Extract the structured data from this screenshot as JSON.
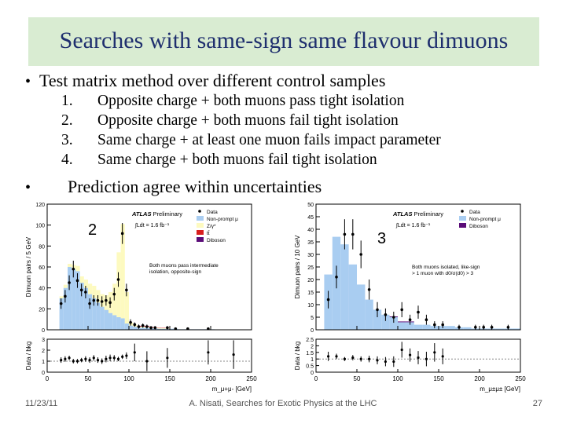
{
  "slide": {
    "title": "Searches with same-sign same flavour dimuons",
    "bullet1": "Test matrix method over different control samples",
    "items": [
      {
        "num": "1.",
        "text": "Opposite charge + both muons pass tight isolation"
      },
      {
        "num": "2.",
        "text": "Opposite charge + both muons fail tight isolation"
      },
      {
        "num": "3.",
        "text": "Same charge + at least one muon fails impact parameter"
      },
      {
        "num": "4.",
        "text": "Same charge + both muons fail tight isolation"
      }
    ],
    "bullet2": "Prediction agree within uncertainties",
    "footer_date": "11/23/11",
    "footer_center": "A. Nisati, Searches for Exotic Physics at the LHC",
    "footer_page": "27"
  },
  "colors": {
    "title_bg": "#d9ecd2",
    "title_text": "#1f2f6e",
    "nonprompt": "#a9cdf1",
    "zgamma": "#fdfac0",
    "ttbar": "#d81e1e",
    "diboson": "#5a0c78"
  },
  "chart_data": [
    {
      "type": "bar",
      "panel_label": "2",
      "title": "ATLAS Preliminary",
      "lumi": "∫Ldt = 1.6 fb⁻¹",
      "ylabel": "Dimuon pairs / 5 GeV",
      "ratio_ylabel": "Data / bkg",
      "xlabel": "m_μ+μ- [GeV]",
      "xlim": [
        0,
        250
      ],
      "ylim": [
        0,
        120
      ],
      "ratio_ylim": [
        0,
        3
      ],
      "x_ticks": [
        "0",
        "50",
        "100",
        "150",
        "200",
        "250"
      ],
      "y_ticks": [
        "0",
        "20",
        "40",
        "60",
        "80",
        "100",
        "120"
      ],
      "ratio_ticks": [
        "0",
        "1",
        "2",
        "3"
      ],
      "legend": [
        "Data",
        "Non-prompt μ",
        "Z/γ*",
        "tt̄",
        "Diboson"
      ],
      "annotation": "Both muons pass intermediate isolation, opposite-sign",
      "bin_width": 5,
      "bin_starts": [
        15,
        20,
        25,
        30,
        35,
        40,
        45,
        50,
        55,
        60,
        65,
        70,
        75,
        80,
        85,
        90,
        95,
        100,
        105,
        110,
        115,
        120,
        125,
        130,
        135,
        140,
        145,
        150,
        155,
        160,
        165,
        170,
        175,
        180,
        185,
        190,
        195,
        200
      ],
      "series": [
        {
          "name": "Non-prompt μ",
          "values": [
            30,
            40,
            60,
            58,
            56,
            45,
            40,
            34,
            30,
            26,
            22,
            19,
            16,
            14,
            12,
            11,
            6,
            4,
            3,
            2,
            2,
            2,
            1.5,
            1.5,
            1,
            1,
            1,
            1,
            1,
            0.5,
            0.5,
            0.5,
            0.5,
            0.5,
            0.5,
            0.5,
            0.5,
            0.5
          ]
        },
        {
          "name": "Z/γ*",
          "values": [
            2,
            3,
            3,
            4,
            5,
            6,
            8,
            10,
            12,
            12,
            12,
            14,
            20,
            30,
            62,
            90,
            30,
            3,
            2,
            1,
            1,
            1,
            0.5,
            0.5,
            0.5,
            0.5,
            0.5,
            0,
            0,
            0,
            0,
            0,
            0,
            0,
            0,
            0,
            0,
            0
          ]
        },
        {
          "name": "tt̄",
          "values": [
            0,
            0,
            0,
            0,
            0,
            0,
            0,
            0,
            0,
            0,
            0,
            0,
            0,
            0,
            0,
            0,
            0,
            0,
            0,
            0.5,
            0.5,
            0.5,
            0.5,
            0.3,
            0.3,
            0.3,
            0.3,
            0,
            0,
            0,
            0,
            0,
            0,
            0,
            0,
            0,
            0,
            0
          ]
        },
        {
          "name": "Diboson",
          "values": [
            0,
            0,
            0,
            0,
            0,
            0,
            0,
            0,
            0,
            0,
            0,
            0,
            0,
            0,
            0,
            0,
            0,
            0,
            0,
            0.3,
            0.3,
            0.3,
            0.2,
            0,
            0,
            0,
            0,
            0,
            0,
            0,
            0,
            0,
            0,
            0,
            0,
            0,
            0,
            0
          ]
        }
      ],
      "data": {
        "x": [
          17,
          22,
          27,
          32,
          37,
          42,
          47,
          52,
          57,
          62,
          67,
          72,
          77,
          82,
          87,
          92,
          97,
          102,
          107,
          112,
          117,
          122,
          127,
          132,
          147,
          157,
          172,
          197
        ],
        "y": [
          25,
          32,
          45,
          58,
          47,
          38,
          36,
          25,
          28,
          28,
          27,
          28,
          26,
          34,
          48,
          92,
          38,
          7,
          5,
          3,
          4,
          3,
          2,
          2,
          2,
          1,
          1,
          1
        ],
        "err": [
          5,
          6,
          7,
          8,
          7,
          6,
          6,
          5,
          5,
          5,
          5,
          5,
          5,
          6,
          7,
          10,
          6,
          3,
          2,
          2,
          2,
          2,
          1.5,
          1.5,
          1.5,
          1,
          1,
          1
        ]
      },
      "ratio": {
        "x": [
          17,
          22,
          27,
          32,
          37,
          42,
          47,
          52,
          57,
          62,
          67,
          72,
          77,
          82,
          87,
          92,
          97,
          107,
          122,
          147,
          197,
          228
        ],
        "y": [
          1.1,
          1.2,
          1.3,
          1.0,
          1.0,
          1.1,
          1.2,
          1.1,
          1.3,
          1.1,
          1.0,
          1.2,
          1.3,
          1.3,
          1.2,
          1.4,
          1.5,
          1.8,
          1.0,
          1.3,
          1.8,
          1.6
        ],
        "err": [
          0.25,
          0.25,
          0.2,
          0.2,
          0.2,
          0.2,
          0.25,
          0.25,
          0.25,
          0.25,
          0.25,
          0.3,
          0.3,
          0.25,
          0.2,
          0.2,
          0.3,
          0.8,
          0.9,
          0.9,
          1.1,
          1.3
        ]
      }
    },
    {
      "type": "bar",
      "panel_label": "3",
      "title": "ATLAS Preliminary",
      "lumi": "∫Ldt = 1.6 fb⁻¹",
      "ylabel": "Dimuon pairs / 10 GeV",
      "ratio_ylabel": "Data / bkg",
      "xlabel": "m_μ±μ± [GeV]",
      "xlim": [
        0,
        250
      ],
      "ylim": [
        0,
        50
      ],
      "ratio_ylim": [
        0,
        2.5
      ],
      "x_ticks": [
        "0",
        "50",
        "100",
        "150",
        "200",
        "250"
      ],
      "y_ticks": [
        "0",
        "5",
        "10",
        "15",
        "20",
        "25",
        "30",
        "35",
        "40",
        "45",
        "50"
      ],
      "ratio_ticks": [
        "0",
        "0.5",
        "1",
        "1.5",
        "2",
        "2.5"
      ],
      "legend": [
        "Data",
        "Non-prompt μ",
        "Diboson"
      ],
      "annotation": "Both muons isolated, like-sign > 1 muon with d0/σ(d0) > 3",
      "bin_width": 10,
      "bin_starts": [
        10,
        20,
        30,
        40,
        50,
        60,
        70,
        80,
        90,
        100,
        110,
        120,
        130,
        140,
        150,
        160,
        170,
        180,
        190,
        200,
        210,
        220,
        230,
        240
      ],
      "series": [
        {
          "name": "Non-prompt μ",
          "values": [
            22,
            37,
            34,
            26,
            18,
            12,
            8,
            6,
            5,
            3,
            3,
            2,
            2,
            1.5,
            1.5,
            1.5,
            1,
            1,
            0.5,
            0.5,
            0.5,
            0.5,
            0.5,
            0.5
          ]
        },
        {
          "name": "Diboson",
          "values": [
            0,
            0,
            0,
            0,
            0,
            0,
            0,
            0,
            0.3,
            0.3,
            0.3,
            0,
            0,
            0,
            0,
            0,
            0,
            0,
            0,
            0,
            0,
            0,
            0,
            0
          ]
        }
      ],
      "data": {
        "x": [
          15,
          25,
          35,
          45,
          55,
          65,
          75,
          85,
          95,
          105,
          115,
          125,
          135,
          145,
          155,
          175,
          195,
          205,
          215,
          235
        ],
        "y": [
          12,
          21,
          38,
          38,
          30,
          16,
          8,
          6,
          5,
          8,
          4,
          7,
          4,
          2,
          2,
          1,
          1,
          1,
          1,
          1
        ],
        "err": [
          3.5,
          4.5,
          6,
          6,
          5.5,
          4,
          3,
          2.5,
          2.2,
          3,
          2,
          2.6,
          2,
          1.4,
          1.4,
          1,
          1,
          1,
          1,
          1
        ]
      },
      "ratio": {
        "x": [
          15,
          25,
          35,
          45,
          55,
          65,
          75,
          85,
          95,
          105,
          115,
          125,
          135,
          145,
          155
        ],
        "y": [
          1.2,
          1.2,
          1.0,
          1.1,
          1.0,
          1.0,
          0.9,
          0.8,
          0.8,
          1.7,
          1.3,
          1.1,
          1.0,
          1.5,
          1.2
        ],
        "err": [
          0.35,
          0.2,
          0.15,
          0.2,
          0.2,
          0.25,
          0.3,
          0.35,
          0.4,
          0.6,
          0.5,
          0.5,
          0.55,
          0.7,
          0.6
        ]
      }
    }
  ]
}
